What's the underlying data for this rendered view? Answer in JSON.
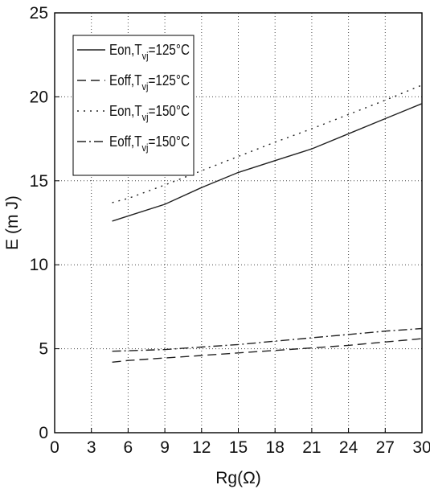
{
  "chart_data": {
    "type": "line",
    "xlabel": "Rg(Ω)",
    "ylabel": "E (m J)",
    "xlim": [
      0,
      30
    ],
    "ylim": [
      0,
      25
    ],
    "xticks": [
      0,
      3,
      6,
      9,
      12,
      15,
      18,
      21,
      24,
      27,
      30
    ],
    "yticks": [
      0,
      5,
      10,
      15,
      20,
      25
    ],
    "grid": true,
    "legend_position": "top-left",
    "series": [
      {
        "name": "Eon,Tvj=125°C",
        "name_main": "Eon,T",
        "name_sub": "vj",
        "name_tail": "=125°C",
        "line_style": "solid",
        "x": [
          4.7,
          6,
          9,
          12,
          15,
          18,
          21,
          24,
          27,
          30
        ],
        "y": [
          12.6,
          12.9,
          13.6,
          14.6,
          15.5,
          16.2,
          16.9,
          17.8,
          18.7,
          19.6
        ]
      },
      {
        "name": "Eoff,Tvj=125°C",
        "name_main": "Eoff,T",
        "name_sub": "vj",
        "name_tail": "=125°C",
        "line_style": "dashed",
        "x": [
          4.7,
          6,
          9,
          12,
          15,
          18,
          21,
          24,
          27,
          30
        ],
        "y": [
          4.2,
          4.3,
          4.45,
          4.6,
          4.75,
          4.9,
          5.05,
          5.2,
          5.4,
          5.6
        ]
      },
      {
        "name": "Eon,Tvj=150°C",
        "name_main": "Eon,T",
        "name_sub": "vj",
        "name_tail": "=150°C",
        "line_style": "dotted",
        "x": [
          4.7,
          6,
          9,
          12,
          15,
          18,
          21,
          24,
          27,
          30
        ],
        "y": [
          13.7,
          13.95,
          14.75,
          15.6,
          16.45,
          17.3,
          18.1,
          18.95,
          19.8,
          20.7
        ]
      },
      {
        "name": "Eoff,Tvj=150°C",
        "name_main": "Eoff,T",
        "name_sub": "vj",
        "name_tail": "=150°C",
        "line_style": "dashdot",
        "x": [
          4.7,
          6,
          9,
          12,
          15,
          18,
          21,
          24,
          27,
          30
        ],
        "y": [
          4.85,
          4.88,
          4.95,
          5.1,
          5.25,
          5.45,
          5.65,
          5.85,
          6.05,
          6.2
        ]
      }
    ]
  }
}
